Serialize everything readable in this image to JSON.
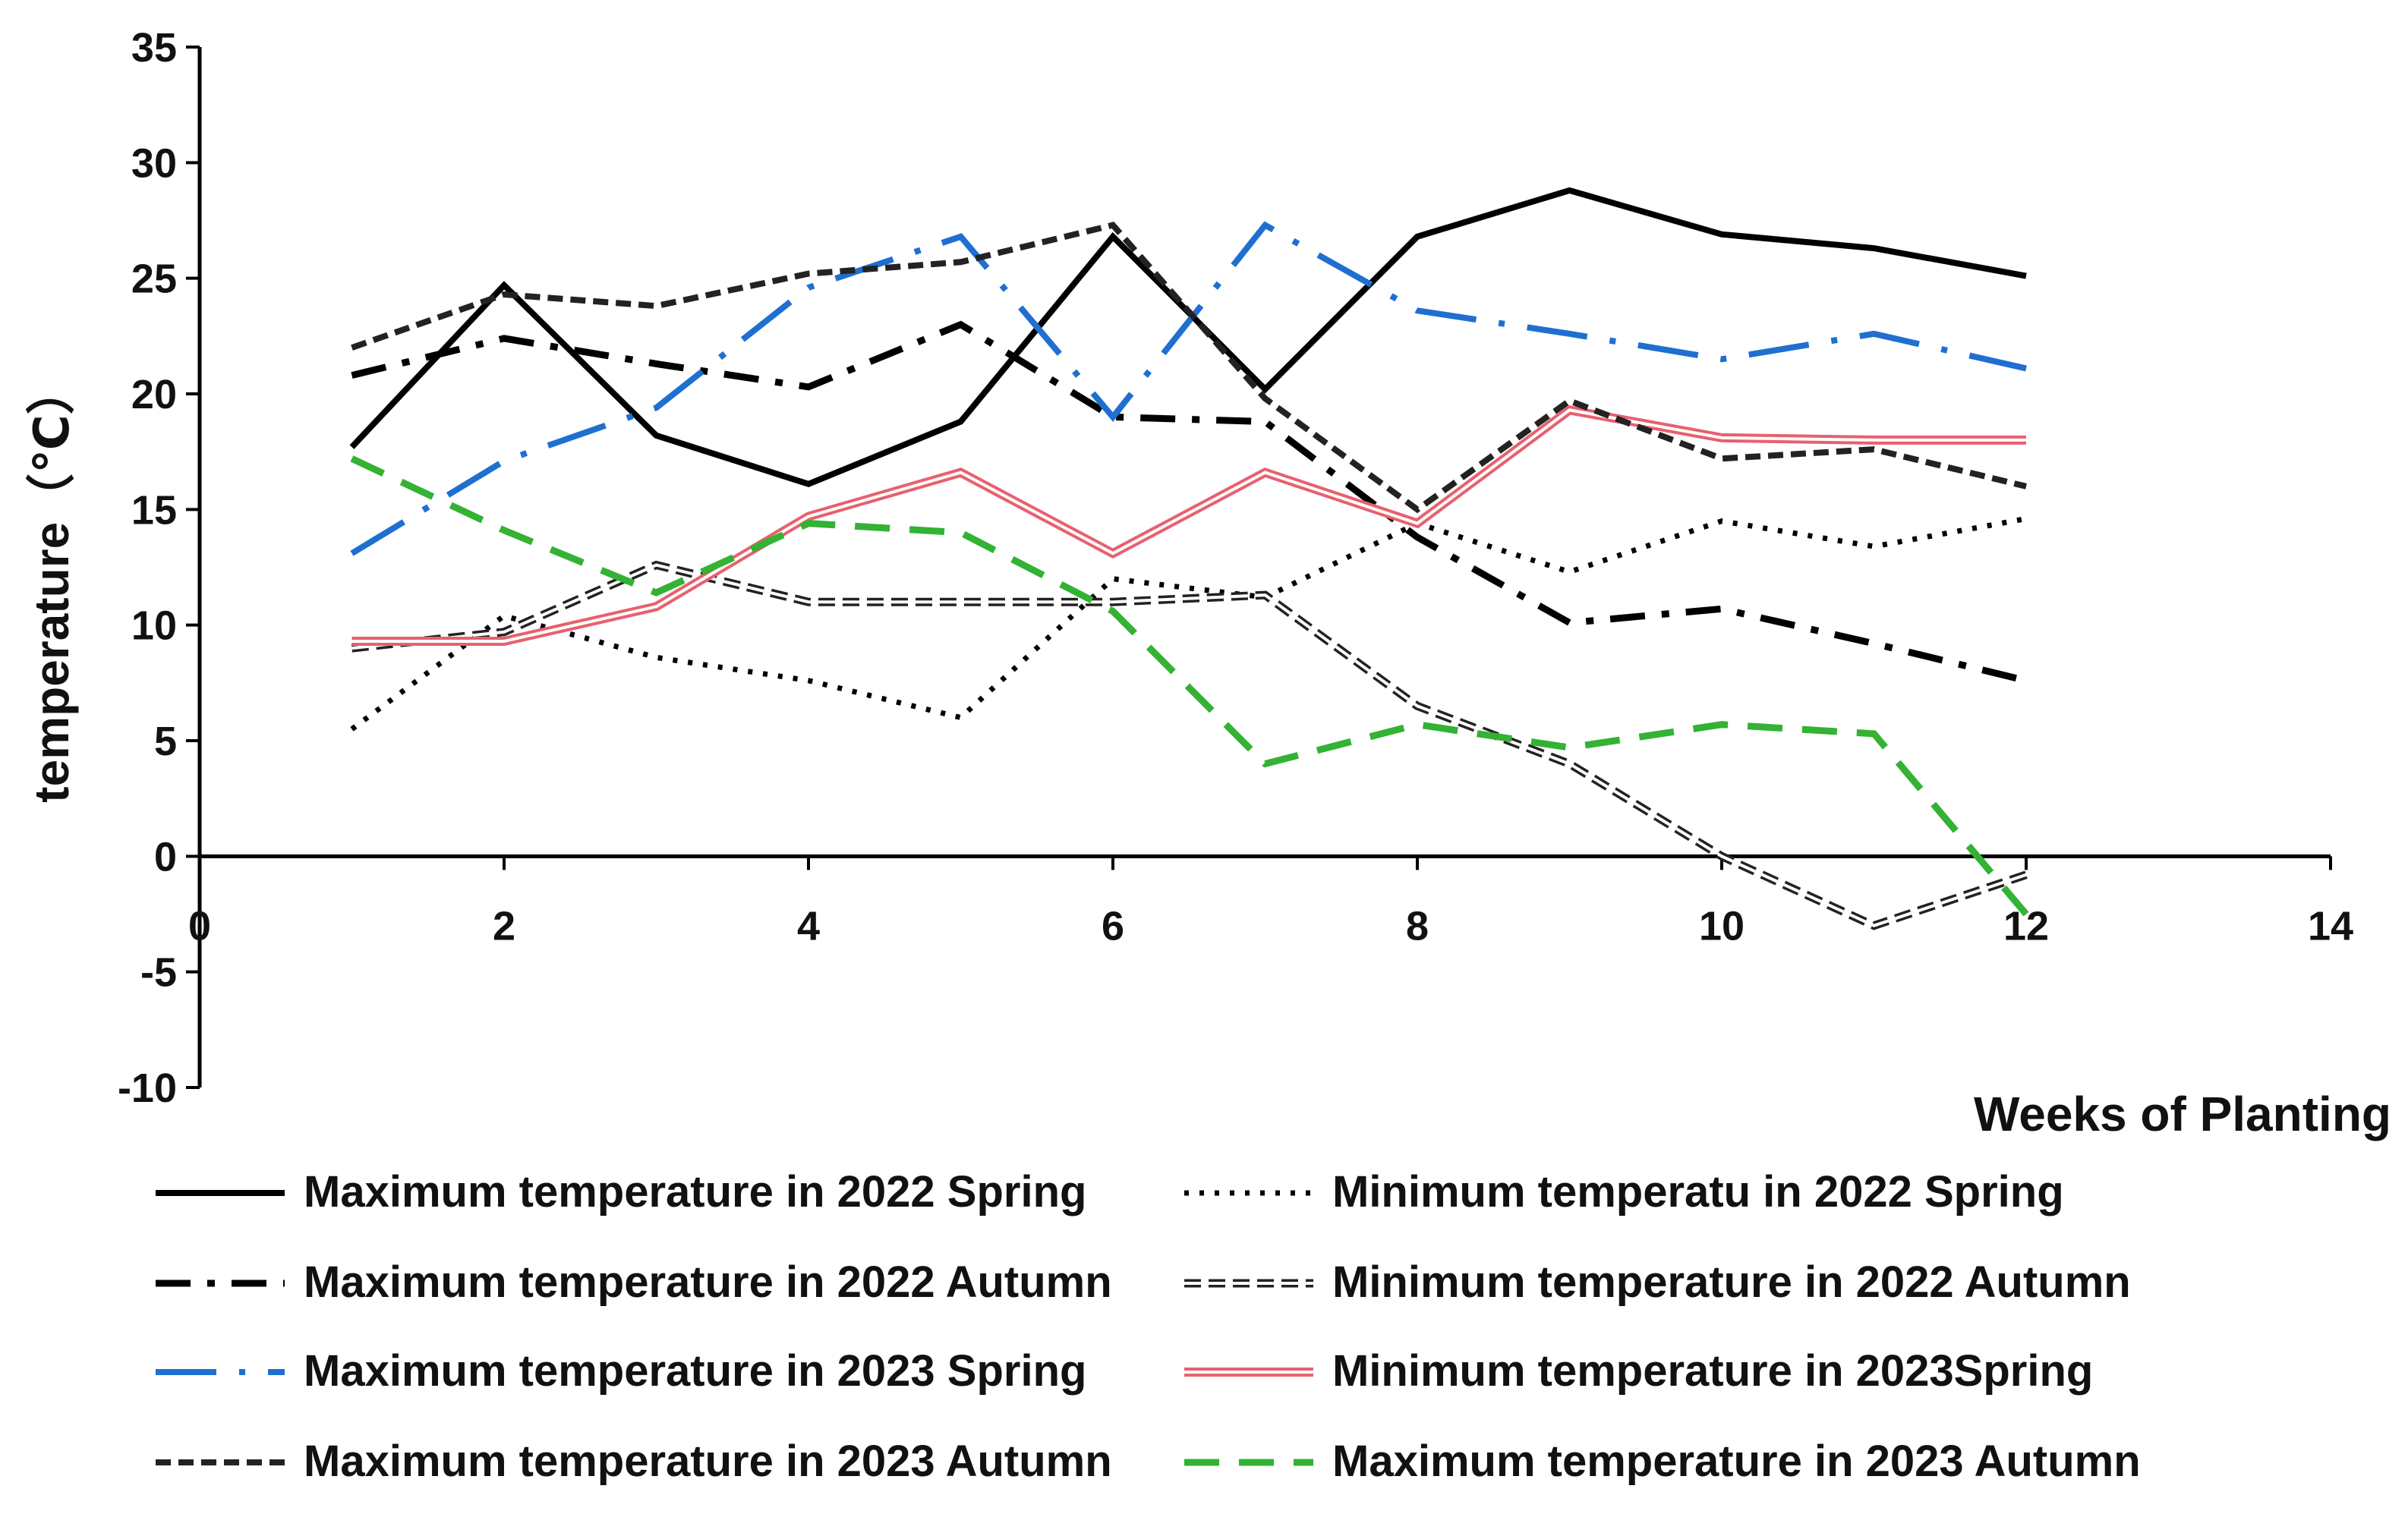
{
  "chart_data": {
    "type": "line",
    "title": "",
    "xlabel": "Weeks of Planting",
    "ylabel": "temperature（℃）",
    "xlim": [
      0,
      14
    ],
    "ylim": [
      -10,
      35
    ],
    "xticks": [
      0,
      2,
      4,
      6,
      8,
      10,
      12,
      14
    ],
    "yticks": [
      35,
      30,
      25,
      20,
      15,
      10,
      5,
      0,
      -5,
      -10
    ],
    "x": [
      1,
      2,
      3,
      4,
      5,
      6,
      7,
      8,
      9,
      10,
      11,
      12
    ],
    "grid": false,
    "legend_position": "bottom",
    "series": [
      {
        "name": "Maximum temperature in 2022 Spring",
        "style": "solid",
        "color": "#000000",
        "values": [
          17.7,
          24.7,
          18.2,
          16.1,
          18.8,
          26.8,
          20.2,
          26.8,
          28.8,
          26.9,
          26.3,
          25.1
        ]
      },
      {
        "name": "Minimum temperatu in 2022 Spring",
        "style": "dotted",
        "color": "#000000",
        "values": [
          5.5,
          10.4,
          8.6,
          7.6,
          6.0,
          12.0,
          11.2,
          14.4,
          12.3,
          14.5,
          13.4,
          14.6
        ]
      },
      {
        "name": "Maximum temperature in 2022 Autumn",
        "style": "dashdot",
        "color": "#000000",
        "values": [
          20.8,
          22.4,
          21.3,
          20.3,
          23.0,
          19.0,
          18.8,
          13.8,
          10.1,
          10.7,
          9.2,
          7.6
        ]
      },
      {
        "name": "Minimum temperature in 2022 Autumn",
        "style": "double-dashed",
        "color": "#222222",
        "values": [
          9.0,
          9.7,
          12.6,
          11.0,
          11.0,
          11.0,
          11.3,
          6.5,
          4.0,
          0.0,
          -3.0,
          -0.8
        ]
      },
      {
        "name": "Maximum temperature in 2023 Spring",
        "style": "longdash-dot",
        "color": "#1f6fd1",
        "values": [
          13.1,
          17.1,
          19.4,
          24.6,
          26.8,
          19.0,
          27.3,
          23.6,
          22.6,
          21.5,
          22.6,
          21.1
        ]
      },
      {
        "name": "Minimum temperature in 2023Spring",
        "style": "double",
        "color": "#e8606e",
        "values": [
          9.3,
          9.3,
          10.8,
          14.7,
          16.6,
          13.1,
          16.6,
          14.4,
          19.3,
          18.1,
          18.0,
          18.0
        ]
      },
      {
        "name": "Maximum temperature in 2023 Autumn",
        "style": "dashed",
        "color": "#222222",
        "values": [
          22.0,
          24.3,
          23.8,
          25.2,
          25.7,
          27.3,
          19.8,
          15.0,
          19.7,
          17.2,
          17.6,
          16.0
        ]
      },
      {
        "name": "Maximum temperature in 2023 Autumn",
        "style": "dashed-thick",
        "color": "#33b233",
        "values": [
          17.2,
          14.1,
          11.4,
          14.4,
          14.0,
          10.6,
          4.0,
          5.7,
          4.7,
          5.7,
          5.3,
          -2.5
        ]
      }
    ]
  }
}
